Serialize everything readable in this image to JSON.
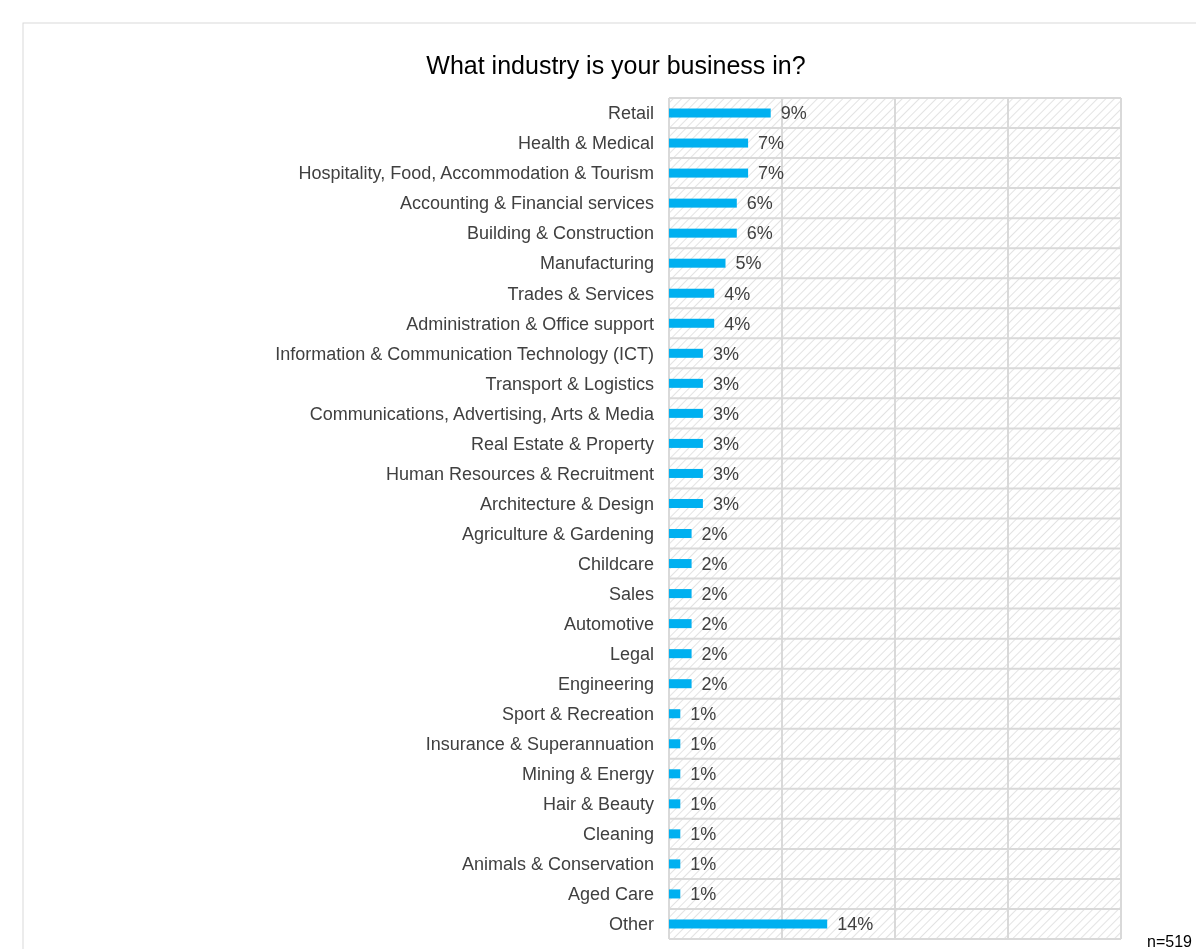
{
  "chart_data": {
    "type": "bar",
    "orientation": "horizontal",
    "title": "What industry is your business in?",
    "categories": [
      "Retail",
      "Health & Medical",
      "Hospitality, Food, Accommodation & Tourism",
      "Accounting & Financial services",
      "Building & Construction",
      "Manufacturing",
      "Trades & Services",
      "Administration & Office support",
      "Information & Communication Technology (ICT)",
      "Transport & Logistics",
      "Communications, Advertising, Arts & Media",
      "Real Estate & Property",
      "Human Resources & Recruitment",
      "Architecture & Design",
      "Agriculture & Gardening",
      "Childcare",
      "Sales",
      "Automotive",
      "Legal",
      "Engineering",
      "Sport & Recreation",
      "Insurance & Superannuation",
      "Mining & Energy",
      "Hair & Beauty",
      "Cleaning",
      "Animals & Conservation",
      "Aged Care",
      "Other"
    ],
    "values": [
      9,
      7,
      7,
      6,
      6,
      5,
      4,
      4,
      3,
      3,
      3,
      3,
      3,
      3,
      2,
      2,
      2,
      2,
      2,
      2,
      1,
      1,
      1,
      1,
      1,
      1,
      1,
      14
    ],
    "value_labels": [
      "9%",
      "7%",
      "7%",
      "6%",
      "6%",
      "5%",
      "4%",
      "4%",
      "3%",
      "3%",
      "3%",
      "3%",
      "3%",
      "3%",
      "2%",
      "2%",
      "2%",
      "2%",
      "2%",
      "2%",
      "1%",
      "1%",
      "1%",
      "1%",
      "1%",
      "1%",
      "1%",
      "14%"
    ],
    "color": "#00b0f0",
    "tick_labels": "y",
    "annotations": [
      "n=519"
    ]
  }
}
